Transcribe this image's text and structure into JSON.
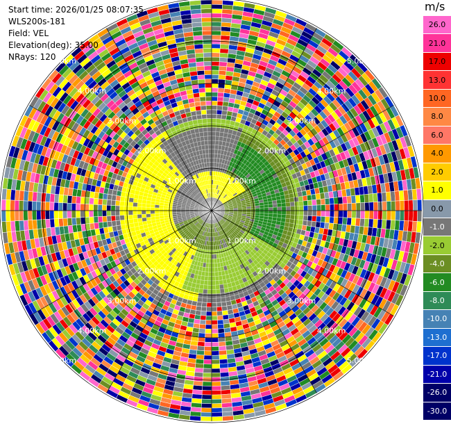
{
  "info": {
    "start_time": "Start time: 2026/01/25 08:07:35",
    "instrument": "WLS200s-181",
    "field": "Field: VEL",
    "elevation": "Elevation(deg): 35.00",
    "nrays": "NRays: 120"
  },
  "colorbar": {
    "unit": "m/s",
    "ticks": [
      "26.0",
      "21.0",
      "17.0",
      "13.0",
      "10.0",
      "8.0",
      "6.0",
      "4.0",
      "2.0",
      "1.0",
      "0.0",
      "-1.0",
      "-2.0",
      "-4.0",
      "-6.0",
      "-8.0",
      "-10.0",
      "-13.0",
      "-17.0",
      "-21.0",
      "-26.0",
      "-30.0"
    ],
    "colors": [
      "#ff66cc",
      "#ff3399",
      "#ee0000",
      "#ff3333",
      "#ff6622",
      "#ff8844",
      "#ff7766",
      "#ff9900",
      "#ffcc00",
      "#ffff00",
      "#8899aa",
      "#777777",
      "#99cc33",
      "#6b8e23",
      "#228b22",
      "#2e8b57",
      "#4682b4",
      "#1e6fd0",
      "#0033cc",
      "#0000aa",
      "#000066"
    ],
    "text_colors": [
      "#000",
      "#000",
      "#000",
      "#000",
      "#000",
      "#000",
      "#000",
      "#000",
      "#000",
      "#000",
      "#000",
      "#fff",
      "#000",
      "#fff",
      "#fff",
      "#fff",
      "#fff",
      "#fff",
      "#fff",
      "#fff",
      "#fff",
      "#fff"
    ]
  },
  "range_labels": {
    "ring1": "1.00km",
    "ring2": "2.00km",
    "ring3": "3.00km",
    "ring4": "4.00km",
    "ring5": "5.00km"
  }
}
